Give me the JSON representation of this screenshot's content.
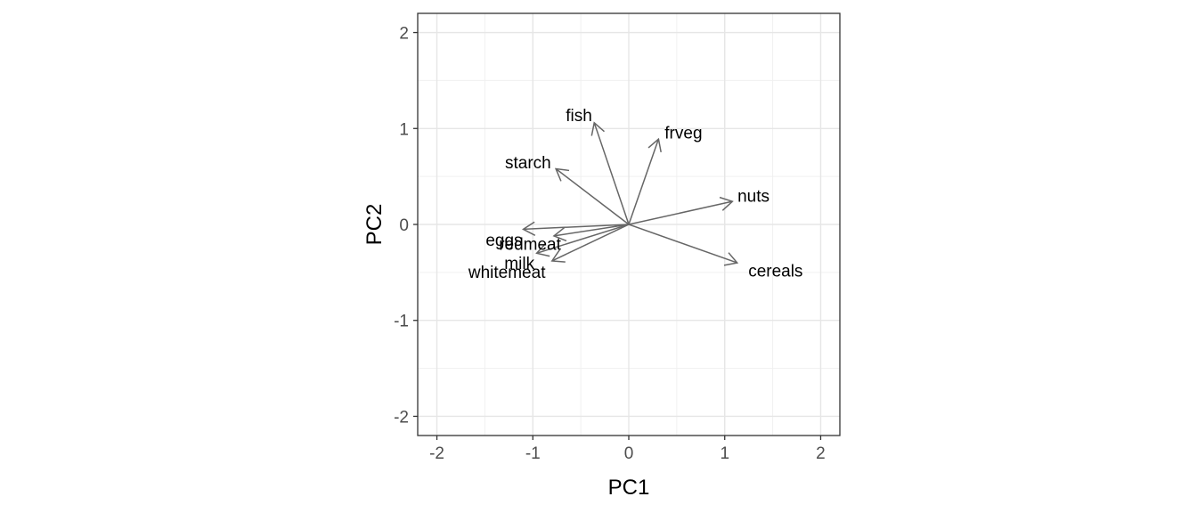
{
  "chart_data": {
    "type": "biplot-loadings",
    "title": "",
    "xlabel": "PC1",
    "ylabel": "PC2",
    "xlim": [
      -2.2,
      2.2
    ],
    "ylim": [
      -2.2,
      2.2
    ],
    "xticks": [
      -2,
      -1,
      0,
      1,
      2
    ],
    "yticks": [
      -2,
      -1,
      0,
      1,
      2
    ],
    "grid": true,
    "vector_color": "#666666",
    "loadings": [
      {
        "name": "fish",
        "x": -0.36,
        "y": 1.06,
        "label_x": -0.52,
        "label_y": 1.14
      },
      {
        "name": "frveg",
        "x": 0.31,
        "y": 0.89,
        "label_x": 0.57,
        "label_y": 0.96
      },
      {
        "name": "starch",
        "x": -0.76,
        "y": 0.58,
        "label_x": -1.05,
        "label_y": 0.65
      },
      {
        "name": "nuts",
        "x": 1.08,
        "y": 0.24,
        "label_x": 1.3,
        "label_y": 0.3
      },
      {
        "name": "eggs",
        "x": -1.1,
        "y": -0.05,
        "label_x": -1.3,
        "label_y": -0.16
      },
      {
        "name": "redmeat",
        "x": -0.78,
        "y": -0.12,
        "label_x": -1.03,
        "label_y": -0.2
      },
      {
        "name": "milk",
        "x": -0.96,
        "y": -0.3,
        "label_x": -1.14,
        "label_y": -0.4
      },
      {
        "name": "whitemeat",
        "x": -0.8,
        "y": -0.38,
        "label_x": -1.27,
        "label_y": -0.49
      },
      {
        "name": "cereals",
        "x": 1.13,
        "y": -0.4,
        "label_x": 1.53,
        "label_y": -0.48
      }
    ]
  }
}
